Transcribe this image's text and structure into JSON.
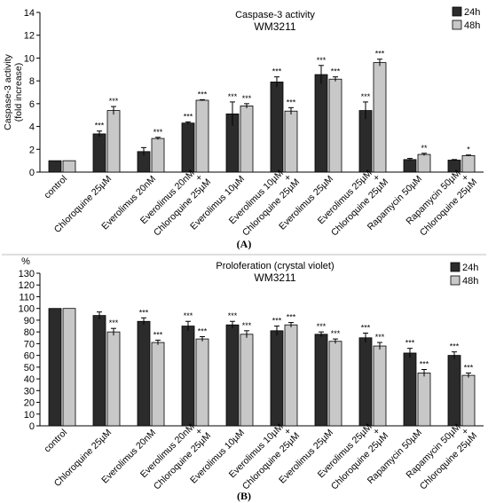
{
  "figure": {
    "panel_labels": [
      "(A)",
      "(B)"
    ],
    "colors": {
      "h24": "#2b2b2b",
      "h48": "#c8c8c8"
    }
  },
  "chart_data": [
    {
      "type": "bar",
      "title": "Caspase-3 activity",
      "subtitle": "WM3211",
      "ylabel": "Caspase-3 activity\n(fold increase)",
      "unit_label": "",
      "ylim": [
        0,
        14
      ],
      "yticks": [
        0,
        2,
        4,
        6,
        8,
        10,
        12,
        14
      ],
      "legend_position": "top-right",
      "grid": false,
      "categories": [
        "control",
        "Chloroquine 25µM",
        "Everolimus 20nM",
        "Everolimus 20nM\n+\nChloroquine 25µM",
        "Everolimus 10µM",
        "Everolimus 10µM\n+\nChloroquine 25µM",
        "Everolimus 25µM",
        "Everolimus 25µM\n+\nChloroquine 25µM",
        "Rapamycin 50µM",
        "Rapamycin 50µM\n+\nChloroquine 25µM"
      ],
      "series": [
        {
          "name": "24h",
          "values": [
            1.0,
            3.35,
            1.8,
            4.3,
            5.1,
            7.9,
            8.55,
            5.4,
            1.1,
            1.05
          ],
          "errors": [
            0.0,
            0.25,
            0.35,
            0.1,
            1.05,
            0.45,
            0.8,
            0.75,
            0.1,
            0.05
          ],
          "stars": [
            "",
            "***",
            "",
            "***",
            "***",
            "***",
            "***",
            "***",
            "",
            ""
          ]
        },
        {
          "name": "48h",
          "values": [
            1.0,
            5.4,
            2.95,
            6.3,
            5.8,
            5.35,
            8.15,
            9.6,
            1.55,
            1.45
          ],
          "errors": [
            0.0,
            0.35,
            0.1,
            0.05,
            0.2,
            0.3,
            0.2,
            0.3,
            0.1,
            0.05
          ],
          "stars": [
            "",
            "***",
            "***",
            "***",
            "***",
            "***",
            "***",
            "***",
            "**",
            "*"
          ]
        }
      ]
    },
    {
      "type": "bar",
      "title": "Proloferation (crystal violet)",
      "subtitle": "WM3211",
      "ylabel": "",
      "unit_label": "%",
      "ylim": [
        0,
        130
      ],
      "yticks": [
        0,
        10,
        20,
        30,
        40,
        50,
        60,
        70,
        80,
        90,
        100,
        110,
        120,
        130
      ],
      "legend_position": "top-right",
      "grid": false,
      "categories": [
        "control",
        "Chloroquine 25µM",
        "Everolimus 20nM",
        "Everolimus 20nM\n+\nChloroquine 25µM",
        "Everolimus 10µM",
        "Everolimus 10µM\n+\nChloroquine 25µM",
        "Everolimus 25µM",
        "Everolimus 25µM\n+\nChloroquine 25µM",
        "Rapamycin 50µM",
        "Rapamycin 50µM\n+\nChloroquine 25µM"
      ],
      "series": [
        {
          "name": "24h",
          "values": [
            100,
            94,
            89,
            85,
            86,
            81,
            78,
            75,
            62,
            60
          ],
          "errors": [
            0,
            3,
            3,
            4,
            3,
            4,
            2,
            4,
            4,
            3
          ],
          "stars": [
            "",
            "",
            "***",
            "***",
            "***",
            "***",
            "***",
            "***",
            "***",
            "***"
          ]
        },
        {
          "name": "48h",
          "values": [
            100,
            80,
            71,
            74,
            78,
            86,
            72,
            68,
            45,
            43
          ],
          "errors": [
            0,
            3,
            2,
            2,
            3,
            2,
            2,
            3,
            3,
            2
          ],
          "stars": [
            "",
            "***",
            "***",
            "***",
            "***",
            "***",
            "***",
            "***",
            "***",
            "***"
          ]
        }
      ]
    }
  ]
}
